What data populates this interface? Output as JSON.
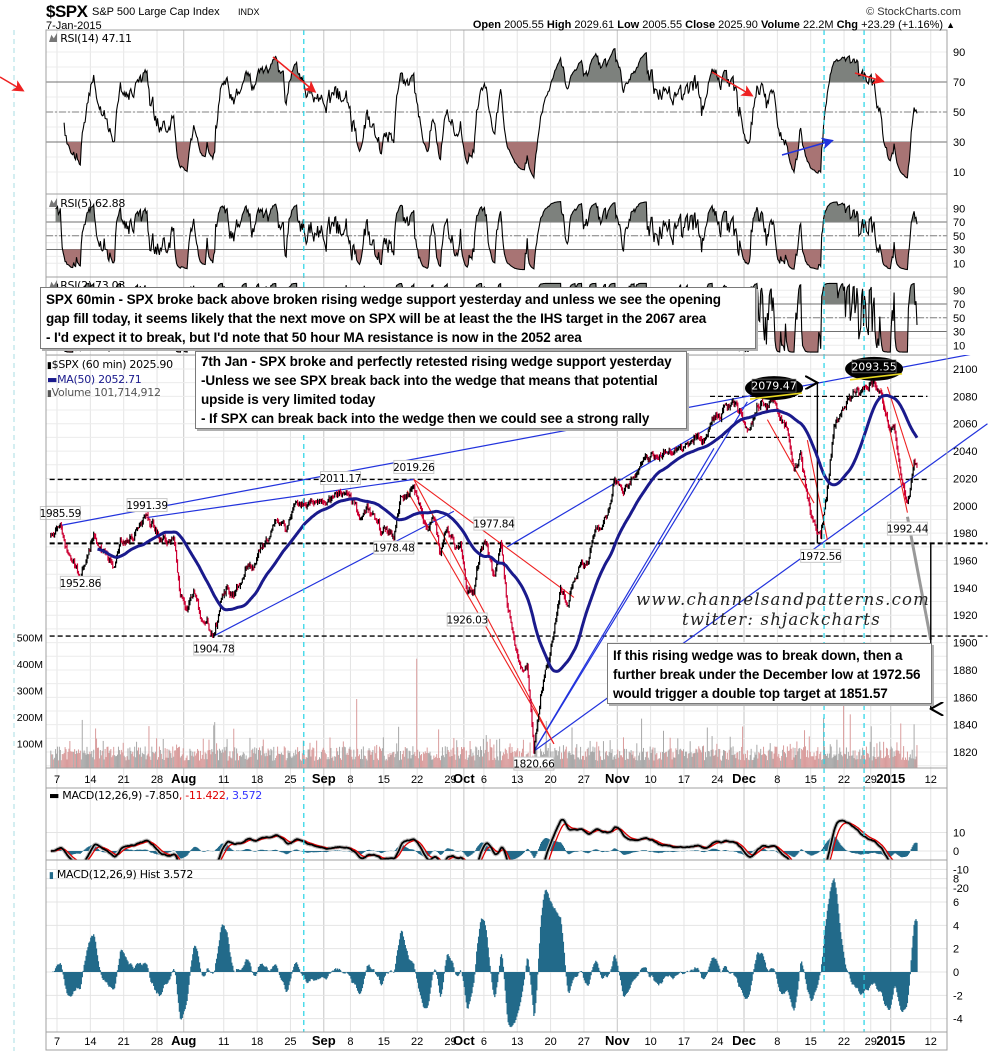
{
  "header": {
    "symbol": "$SPX",
    "name": "S&P 500 Large Cap Index",
    "exchange": "INDX",
    "copyright": "© StockCharts.com",
    "date": "7-Jan-2015",
    "open_label": "Open",
    "open": "2005.55",
    "high_label": "High",
    "high": "2029.61",
    "low_label": "Low",
    "low": "2005.55",
    "close_label": "Close",
    "close": "2025.90",
    "volume_label": "Volume",
    "volume": "22.2M",
    "chg_label": "Chg",
    "chg": "+23.29 (+1.16%)",
    "chg_arrow": "▲"
  },
  "panels": {
    "rsi14": {
      "label": "RSI(14) 47.11"
    },
    "rsi5": {
      "label": "RSI(5) 62.88"
    },
    "rsi2": {
      "label": "RSI(2) 73.03"
    },
    "price": {
      "label": "$SPX (60 min) 2025.90",
      "ma_label": "MA(50) 2052.71",
      "volume_label": "Volume 101,714,912"
    },
    "macd": {
      "name": "MACD(12,26,9)",
      "macd": "-7.850",
      "signal": ", -11.422",
      "hist": ", 3.572"
    },
    "hist": {
      "label": "MACD(12,26,9) Hist 3.572"
    }
  },
  "annotations": {
    "box1": [
      "SPX 60min - SPX broke back above broken rising wedge support yesterday and unless we see the opening",
      "gap fill today, it seems likely that the next move on SPX will be at least the the IHS target in the 2067 area",
      "- I'd expect it to break, but I'd note that 50 hour MA resistance is now in the 2052 area"
    ],
    "box2": [
      "7th Jan - SPX broke and perfectly retested rising wedge support yesterday",
      "-Unless we see SPX break back into the wedge that means that potential",
      "upside is very limited today",
      "- If SPX can break back into the wedge then we could see a strong rally"
    ],
    "box3": [
      "If this rising wedge was to break down, then a",
      "further break under the December low at 1972.56",
      "would trigger a double top target at 1851.57"
    ],
    "watermark": [
      "www.channelsandpatterns.com",
      "twitter: shjackcharts"
    ]
  },
  "colors": {
    "up_candle": "#000000",
    "down_candle": "#cc0033",
    "ma50": "#1a1a8c",
    "trendline_blue": "#2233dd",
    "trendline_red": "#ee2222",
    "rsi_overbought_fill": "#7d817d",
    "rsi_oversold_fill": "#a87474",
    "macd_line": "#000000",
    "signal_line": "#e00000",
    "histogram": "#226a8a",
    "volume_up": "#a8a8a8",
    "volume_down": "#d99c9c",
    "marker_cyan": "#22d3e6",
    "macd_hist_legend": "#3333ff"
  },
  "chart_data": {
    "type": "line",
    "title": "$SPX S&P 500 Large Cap Index",
    "interval": "60 min",
    "x_ticks": [
      "7",
      "14",
      "21",
      "28",
      "Aug",
      "11",
      "18",
      "25",
      "Sep",
      "8",
      "15",
      "22",
      "29",
      "Oct",
      "6",
      "13",
      "20",
      "27",
      "Nov",
      "10",
      "17",
      "24",
      "Dec",
      "8",
      "15",
      "22",
      "29",
      "2015",
      "12"
    ],
    "x_tick_dates": [
      "2014-07-07",
      "2014-07-14",
      "2014-07-21",
      "2014-07-28",
      "2014-08-01",
      "2014-08-11",
      "2014-08-18",
      "2014-08-25",
      "2014-09-02",
      "2014-09-08",
      "2014-09-15",
      "2014-09-22",
      "2014-09-29",
      "2014-10-01",
      "2014-10-06",
      "2014-10-13",
      "2014-10-20",
      "2014-10-27",
      "2014-11-03",
      "2014-11-10",
      "2014-11-17",
      "2014-11-24",
      "2014-12-01",
      "2014-12-08",
      "2014-12-15",
      "2014-12-22",
      "2014-12-29",
      "2015-01-02",
      "2015-01-12"
    ],
    "price_ticks": [
      2100,
      2080,
      2060,
      2040,
      2020,
      2000,
      1980,
      1960,
      1940,
      1920,
      1900,
      1880,
      1860,
      1840,
      1820
    ],
    "price_ylim": [
      1808,
      2110
    ],
    "volume_ticks": [
      "500M",
      "400M",
      "300M",
      "200M",
      "100M"
    ],
    "volume_tick_values": [
      500000000,
      400000000,
      300000000,
      200000000,
      100000000
    ],
    "rsi_ticks": [
      90,
      70,
      50,
      30,
      10
    ],
    "macd_ticks": [
      10,
      0,
      -10,
      -20
    ],
    "hist_ticks": [
      8,
      6,
      4,
      2,
      0,
      -2,
      -4
    ],
    "ma_period": 50,
    "price_path": [
      [
        "2014-07-03",
        1978
      ],
      [
        "2014-07-07",
        1985.6
      ],
      [
        "2014-07-08",
        1968
      ],
      [
        "2014-07-10",
        1953
      ],
      [
        "2014-07-11",
        1965
      ],
      [
        "2014-07-14",
        1978
      ],
      [
        "2014-07-15",
        1970
      ],
      [
        "2014-07-17",
        1958
      ],
      [
        "2014-07-18",
        1975
      ],
      [
        "2014-07-21",
        1972
      ],
      [
        "2014-07-23",
        1987
      ],
      [
        "2014-07-24",
        1991.4
      ],
      [
        "2014-07-28",
        1975
      ],
      [
        "2014-07-29",
        1973
      ],
      [
        "2014-07-30",
        1975
      ],
      [
        "2014-07-31",
        1932
      ],
      [
        "2014-08-01",
        1926
      ],
      [
        "2014-08-04",
        1938
      ],
      [
        "2014-08-05",
        1920
      ],
      [
        "2014-08-06",
        1918
      ],
      [
        "2014-08-07",
        1905
      ],
      [
        "2014-08-08",
        1930
      ],
      [
        "2014-08-11",
        1938
      ],
      [
        "2014-08-12",
        1932
      ],
      [
        "2014-08-13",
        1945
      ],
      [
        "2014-08-14",
        1955
      ],
      [
        "2014-08-15",
        1952
      ],
      [
        "2014-08-18",
        1970
      ],
      [
        "2014-08-19",
        1980
      ],
      [
        "2014-08-20",
        1985
      ],
      [
        "2014-08-21",
        1992
      ],
      [
        "2014-08-22",
        1987
      ],
      [
        "2014-08-25",
        1998
      ],
      [
        "2014-08-26",
        2002
      ],
      [
        "2014-08-29",
        2003
      ],
      [
        "2014-09-02",
        2002
      ],
      [
        "2014-09-04",
        2011
      ],
      [
        "2014-09-05",
        2006
      ],
      [
        "2014-09-08",
        2000
      ],
      [
        "2014-09-09",
        1990
      ],
      [
        "2014-09-10",
        1996
      ],
      [
        "2014-09-11",
        1995
      ],
      [
        "2014-09-12",
        1985
      ],
      [
        "2014-09-15",
        1983
      ],
      [
        "2014-09-16",
        1978.5
      ],
      [
        "2014-09-17",
        2000
      ],
      [
        "2014-09-18",
        2010
      ],
      [
        "2014-09-19",
        2015
      ],
      [
        "2014-09-22",
        1996
      ],
      [
        "2014-09-23",
        1985
      ],
      [
        "2014-09-24",
        1995
      ],
      [
        "2014-09-25",
        1966
      ],
      [
        "2014-09-26",
        1980
      ],
      [
        "2014-09-29",
        1974
      ],
      [
        "2014-09-30",
        1968
      ],
      [
        "2014-10-01",
        1935
      ],
      [
        "2014-10-02",
        1932
      ],
      [
        "2014-10-03",
        1966
      ],
      [
        "2014-10-06",
        1970
      ],
      [
        "2014-10-07",
        1945
      ],
      [
        "2014-10-08",
        1972
      ],
      [
        "2014-10-09",
        1930
      ],
      [
        "2014-10-10",
        1908
      ],
      [
        "2014-10-13",
        1875
      ],
      [
        "2014-10-14",
        1880
      ],
      [
        "2014-10-15",
        1825
      ],
      [
        "2014-10-16",
        1865
      ],
      [
        "2014-10-17",
        1880
      ],
      [
        "2014-10-20",
        1904
      ],
      [
        "2014-10-21",
        1940
      ],
      [
        "2014-10-22",
        1928
      ],
      [
        "2014-10-23",
        1950
      ],
      [
        "2014-10-24",
        1962
      ],
      [
        "2014-10-27",
        1960
      ],
      [
        "2014-10-28",
        1985
      ],
      [
        "2014-10-29",
        1982
      ],
      [
        "2014-10-30",
        1995
      ],
      [
        "2014-10-31",
        2018
      ],
      [
        "2014-11-03",
        2017
      ],
      [
        "2014-11-04",
        2012
      ],
      [
        "2014-11-05",
        2023
      ],
      [
        "2014-11-06",
        2031
      ],
      [
        "2014-11-07",
        2032
      ],
      [
        "2014-11-10",
        2038
      ],
      [
        "2014-11-12",
        2038
      ],
      [
        "2014-11-14",
        2039
      ],
      [
        "2014-11-17",
        2041
      ],
      [
        "2014-11-19",
        2048
      ],
      [
        "2014-11-20",
        2052
      ],
      [
        "2014-11-21",
        2063
      ],
      [
        "2014-11-24",
        2069
      ],
      [
        "2014-11-26",
        2073
      ],
      [
        "2014-11-28",
        2067
      ],
      [
        "2014-12-01",
        2055
      ],
      [
        "2014-12-02",
        2066
      ],
      [
        "2014-12-03",
        2074
      ],
      [
        "2014-12-04",
        2072
      ],
      [
        "2014-12-05",
        2077
      ],
      [
        "2014-12-08",
        2060
      ],
      [
        "2014-12-09",
        2059
      ],
      [
        "2014-12-10",
        2026
      ],
      [
        "2014-12-11",
        2036
      ],
      [
        "2014-12-12",
        2002
      ],
      [
        "2014-12-15",
        1990
      ],
      [
        "2014-12-16",
        1976
      ],
      [
        "2014-12-17",
        2012
      ],
      [
        "2014-12-18",
        2061
      ],
      [
        "2014-12-19",
        2070
      ],
      [
        "2014-12-22",
        2078
      ],
      [
        "2014-12-23",
        2082
      ],
      [
        "2014-12-24",
        2081
      ],
      [
        "2014-12-26",
        2088
      ],
      [
        "2014-12-29",
        2090
      ],
      [
        "2014-12-30",
        2080
      ],
      [
        "2014-12-31",
        2058
      ],
      [
        "2015-01-02",
        2058
      ],
      [
        "2015-01-05",
        2020
      ],
      [
        "2015-01-06",
        2000
      ],
      [
        "2015-01-07",
        2025.9
      ]
    ],
    "price_labels": [
      {
        "text": "1985.59",
        "date": "2014-07-07",
        "price": 1985.59,
        "position": "above"
      },
      {
        "text": "1952.86",
        "date": "2014-07-10",
        "price": 1952.86,
        "position": "below"
      },
      {
        "text": "1991.39",
        "date": "2014-07-24",
        "price": 1991.39,
        "position": "above"
      },
      {
        "text": "1904.78",
        "date": "2014-08-07",
        "price": 1904.78,
        "position": "below"
      },
      {
        "text": "2011.17",
        "date": "2014-09-04",
        "price": 2011.17,
        "position": "above"
      },
      {
        "text": "1978.48",
        "date": "2014-09-16",
        "price": 1978.48,
        "position": "below"
      },
      {
        "text": "2019.26",
        "date": "2014-09-19",
        "price": 2019.26,
        "position": "above"
      },
      {
        "text": "1926.03",
        "date": "2014-10-01",
        "price": 1926.03,
        "position": "below"
      },
      {
        "text": "1977.84",
        "date": "2014-10-07",
        "price": 1977.84,
        "position": "above"
      },
      {
        "text": "1820.66",
        "date": "2014-10-15",
        "price": 1820.66,
        "position": "below"
      },
      {
        "text": "2079.47",
        "date": "2014-12-05",
        "price": 2079.47,
        "position": "ellipse"
      },
      {
        "text": "1972.56",
        "date": "2014-12-16",
        "price": 1972.56,
        "position": "below"
      },
      {
        "text": "2093.55",
        "date": "2014-12-29",
        "price": 2093.55,
        "position": "ellipse"
      },
      {
        "text": "1992.44",
        "date": "2015-01-06",
        "price": 1992.44,
        "position": "below"
      }
    ],
    "trendlines_blue": [
      [
        [
          "2014-07-07",
          1985.6
        ],
        [
          "2015-01-23",
          2113
        ]
      ],
      [
        [
          "2014-07-24",
          1991.4
        ],
        [
          "2014-09-19",
          2019.3
        ]
      ],
      [
        [
          "2014-08-07",
          1904.8
        ],
        [
          "2014-09-29",
          1996
        ]
      ],
      [
        [
          "2014-10-15",
          1820.7
        ],
        [
          "2015-01-23",
          2060
        ]
      ],
      [
        [
          "2014-10-15",
          1820.7
        ],
        [
          "2014-12-01",
          2076
        ]
      ],
      [
        [
          "2014-10-15",
          1820.7
        ],
        [
          "2014-11-21",
          2042
        ]
      ],
      [
        [
          "2014-10-09",
          1970
        ],
        [
          "2014-12-03",
          2079.5
        ]
      ]
    ],
    "trendlines_red": [
      [
        [
          "2014-09-19",
          2019.3
        ],
        [
          "2014-10-20",
          1826
        ]
      ],
      [
        [
          "2014-09-19",
          2019.3
        ],
        [
          "2014-10-23",
          1933
        ]
      ],
      [
        [
          "2014-09-18",
          2011
        ],
        [
          "2014-10-20",
          1826
        ]
      ],
      [
        [
          "2014-12-04",
          2063
        ],
        [
          "2014-12-15",
          2002
        ]
      ],
      [
        [
          "2014-12-12",
          2048
        ],
        [
          "2014-12-17",
          1975
        ]
      ],
      [
        [
          "2014-12-31",
          2087
        ],
        [
          "2015-01-07",
          2026
        ]
      ],
      [
        [
          "2014-12-30",
          2086
        ],
        [
          "2015-01-06",
          1995
        ]
      ]
    ],
    "horizontal_levels": [
      {
        "price": 2019.26,
        "from": "2014-07-03",
        "to": "2015-01-09"
      },
      {
        "price": 1972.56,
        "from": "2014-07-03",
        "to": "2015-01-23"
      },
      {
        "price": 1904.78,
        "from": "2014-07-03",
        "to": "2015-01-23"
      },
      {
        "price": 2080,
        "from": "2014-11-21",
        "to": "2015-01-09"
      },
      {
        "price": 2050,
        "from": "2014-11-21",
        "to": "2014-12-10"
      }
    ],
    "projection_arrows": [
      {
        "date": "2014-12-16",
        "from": 1972.56,
        "to": 2090
      },
      {
        "date": "2015-01-12",
        "from": 1972.56,
        "to": 1851.57
      }
    ],
    "vertical_markers": [
      "2014-08-27",
      "2014-12-17",
      "2014-12-26"
    ]
  }
}
